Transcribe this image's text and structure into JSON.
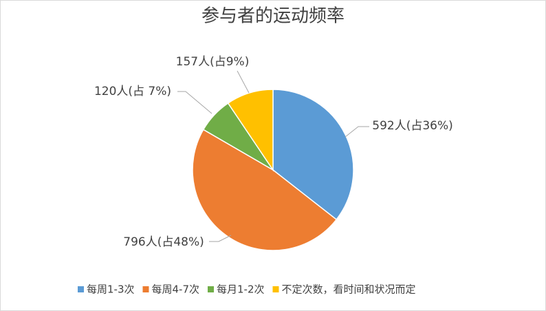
{
  "chart_data": {
    "type": "pie",
    "title": "参与者的运动频率",
    "categories": [
      "每周1-3次",
      "每周4-7次",
      "每月1-2次",
      "不定次数，看时间和状况而定"
    ],
    "values": [
      592,
      796,
      120,
      157
    ],
    "value_labels": [
      "592人(占36%)",
      "796人(占48%)",
      "120人(占 7%)",
      "157人(占9%)"
    ],
    "colors": [
      "#5b9bd5",
      "#ed7d31",
      "#70ad47",
      "#ffc000"
    ],
    "legend": "bottom"
  }
}
